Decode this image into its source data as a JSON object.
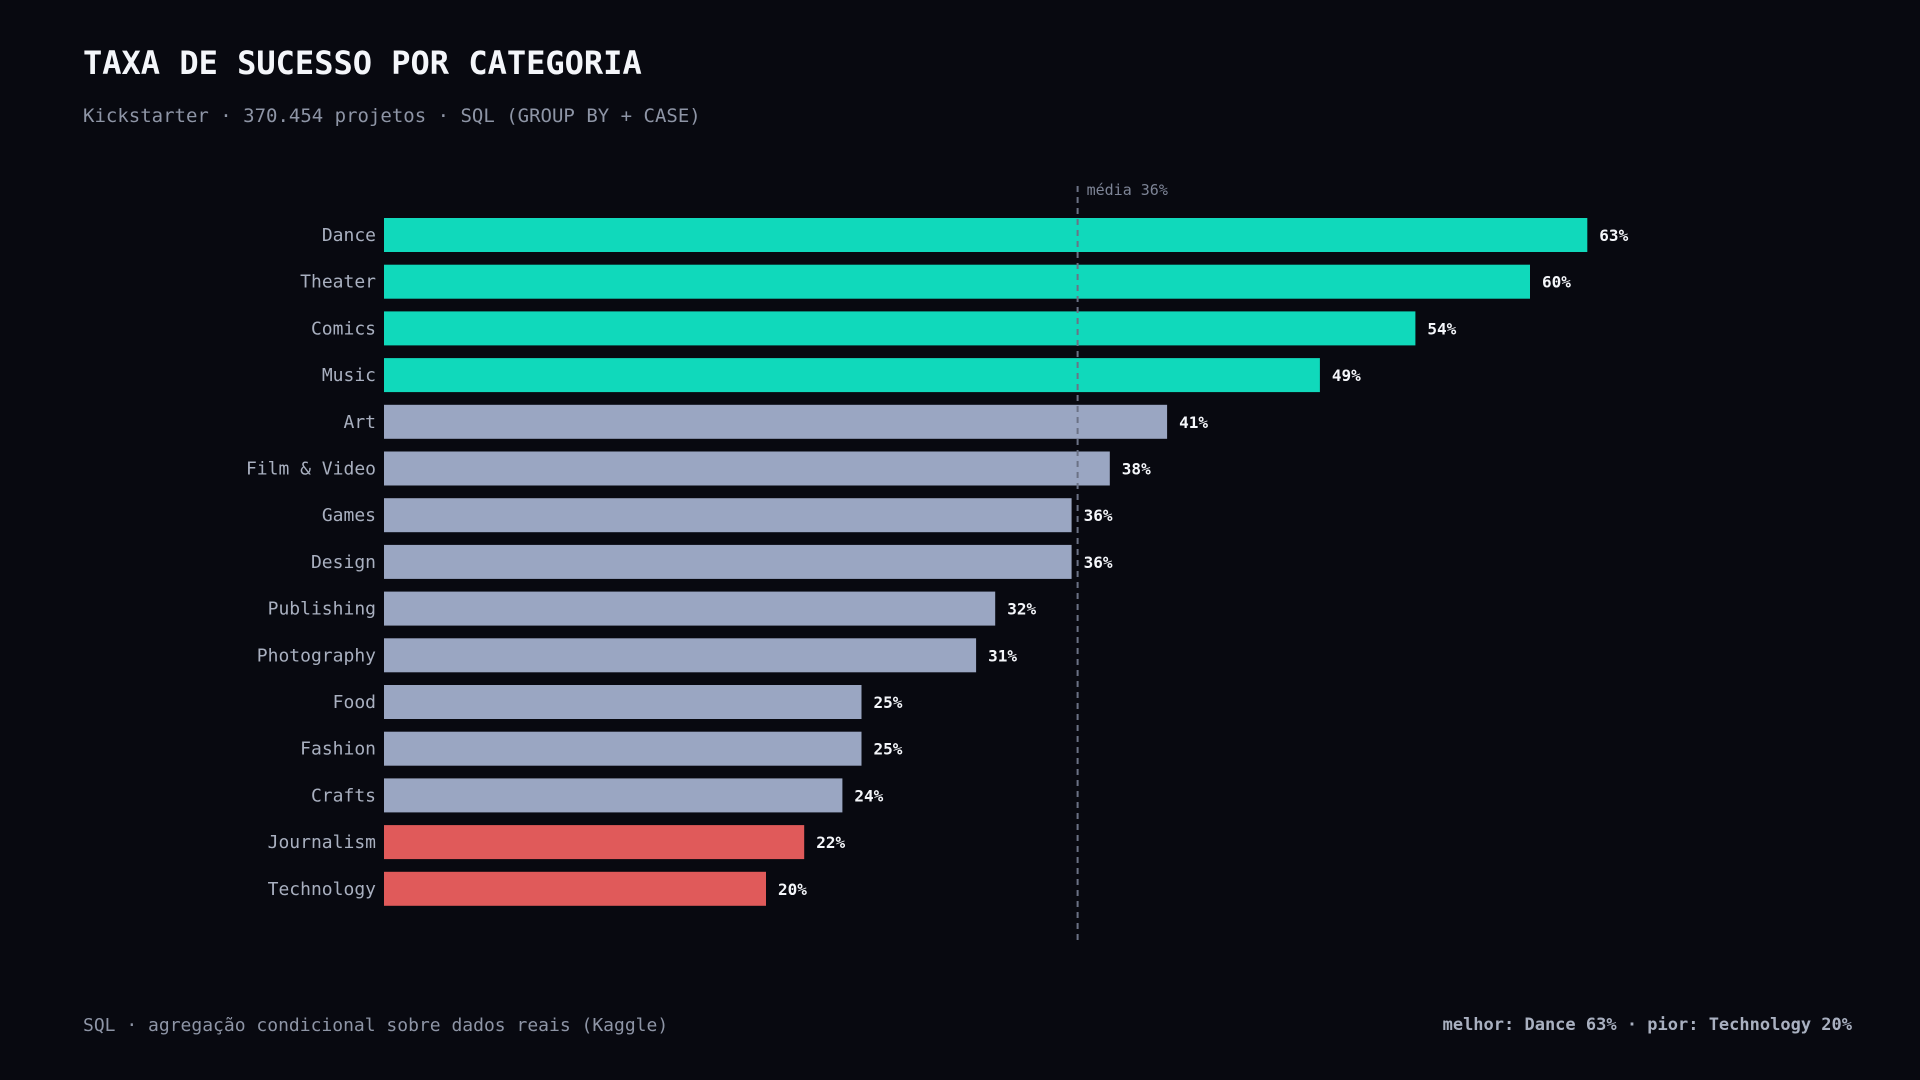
{
  "header": {
    "title": "TAXA DE SUCESSO POR CATEGORIA",
    "subtitle": "Kickstarter · 370.454 projetos · SQL (GROUP BY + CASE)"
  },
  "footer": {
    "left": "SQL · agregação condicional sobre dados reais (Kaggle)",
    "right": "melhor: Dance 63% · pior: Technology 20%"
  },
  "colors": {
    "top": "#10d9bb",
    "middle": "#9aa6c2",
    "bottom": "#e05a5a",
    "background": "#080910",
    "mean_line": "#6b7285"
  },
  "chart_data": {
    "type": "bar",
    "orientation": "horizontal",
    "title": "TAXA DE SUCESSO POR CATEGORIA",
    "subtitle": "Kickstarter · 370.454 projetos · SQL (GROUP BY + CASE)",
    "unit": "%",
    "categories": [
      "Dance",
      "Theater",
      "Comics",
      "Music",
      "Art",
      "Film & Video",
      "Games",
      "Design",
      "Publishing",
      "Photography",
      "Food",
      "Fashion",
      "Crafts",
      "Journalism",
      "Technology"
    ],
    "values": [
      63,
      60,
      54,
      49,
      41,
      38,
      36,
      36,
      32,
      31,
      25,
      25,
      24,
      22,
      20
    ],
    "value_labels": [
      "63%",
      "60%",
      "54%",
      "49%",
      "41%",
      "38%",
      "36%",
      "36%",
      "32%",
      "31%",
      "25%",
      "25%",
      "24%",
      "22%",
      "20%"
    ],
    "groups": [
      "top",
      "top",
      "top",
      "top",
      "middle",
      "middle",
      "middle",
      "middle",
      "middle",
      "middle",
      "middle",
      "middle",
      "middle",
      "bottom",
      "bottom"
    ],
    "mean": 36,
    "mean_label": "média 36%",
    "xlim": [
      0,
      63
    ],
    "grid": false,
    "legend": "none"
  }
}
